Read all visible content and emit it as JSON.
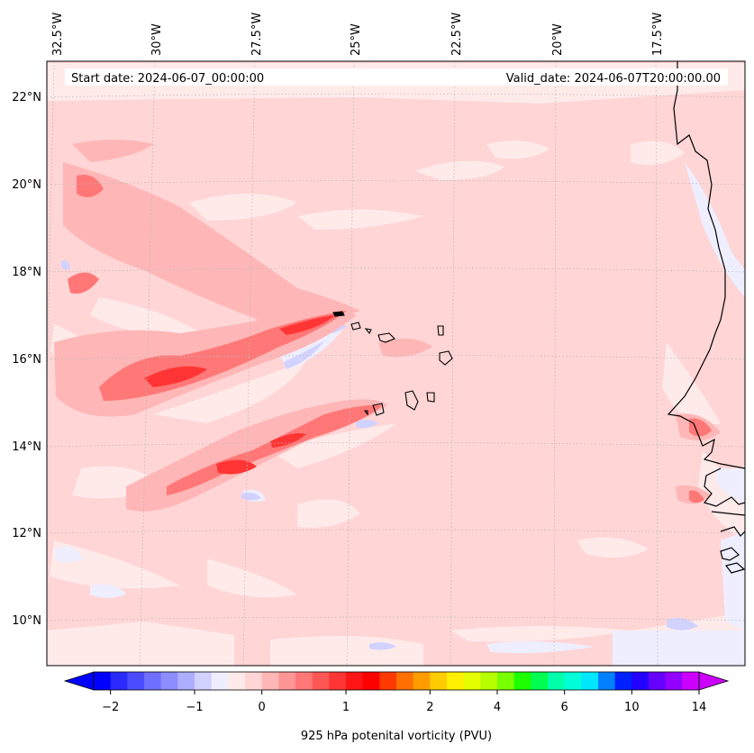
{
  "map": {
    "start_date": "Start date: 2024-06-07_00:00:00",
    "valid_date": "Valid_date: 2024-06-07T20:00:00.00",
    "lon_labels": [
      "32.5°W",
      "30°W",
      "27.5°W",
      "25°W",
      "22.5°W",
      "20°W",
      "17.5°W"
    ],
    "lat_labels": [
      "22°N",
      "20°N",
      "18°N",
      "16°N",
      "14°N",
      "12°N",
      "10°N"
    ],
    "background_color": "#ffd5d5",
    "coastline_color": "#000000"
  },
  "colorbar": {
    "label": "925 hPa potenital vorticity (PVU)",
    "tick_labels": [
      "−2",
      "−1",
      "0",
      "1",
      "2",
      "4",
      "6",
      "10",
      "14"
    ],
    "colors": [
      "#0000ff",
      "#2a2aff",
      "#4b4bff",
      "#6f6fff",
      "#8d8dff",
      "#aeaeff",
      "#d2d2ff",
      "#eeeeff",
      "#ffeaea",
      "#ffd5d5",
      "#ffb6b6",
      "#ff9595",
      "#ff7777",
      "#ff5656",
      "#ff3535",
      "#ff1515",
      "#ff0000",
      "#ff3a00",
      "#ff7000",
      "#ff9c00",
      "#ffcc00",
      "#fff000",
      "#e4ff00",
      "#b6ff00",
      "#78ff00",
      "#1dff00",
      "#00ff50",
      "#00ffaa",
      "#00ffd8",
      "#00e6ff",
      "#0080ff",
      "#0020ff",
      "#2300ff",
      "#6600ff",
      "#9400ff",
      "#cc00ff"
    ]
  }
}
